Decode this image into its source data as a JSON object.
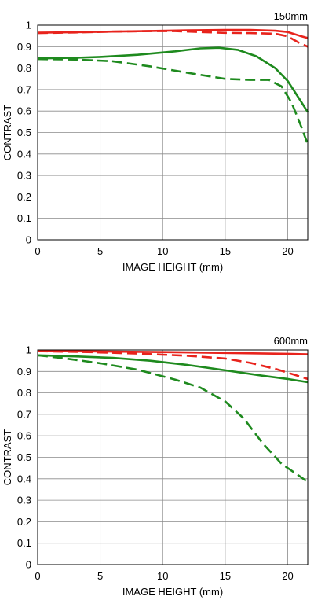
{
  "chart_data": [
    {
      "type": "line",
      "title": "150mm",
      "xlabel": "IMAGE HEIGHT (mm)",
      "ylabel": "CONTRAST",
      "xlim": [
        0,
        21.6
      ],
      "ylim": [
        0,
        1
      ],
      "xticks": [
        0,
        5,
        10,
        15,
        20
      ],
      "yticks": [
        0,
        0.1,
        0.2,
        0.3,
        0.4,
        0.5,
        0.6,
        0.7,
        0.8,
        0.9,
        1
      ],
      "xtick_labels": [
        "0",
        "5",
        "10",
        "15",
        "20"
      ],
      "ytick_labels": [
        "0",
        "0.1",
        "0.2",
        "0.3",
        "0.4",
        "0.5",
        "0.6",
        "0.7",
        "0.8",
        "0.9",
        "1"
      ],
      "grid": true,
      "series": [
        {
          "color": "#e8231c",
          "dash": false,
          "x": [
            0,
            3,
            6,
            9,
            12,
            15,
            17,
            19,
            20,
            21,
            21.6
          ],
          "y": [
            0.965,
            0.967,
            0.97,
            0.973,
            0.976,
            0.978,
            0.978,
            0.974,
            0.968,
            0.95,
            0.94
          ]
        },
        {
          "color": "#e8231c",
          "dash": true,
          "x": [
            0,
            3,
            6,
            9,
            11,
            13,
            15,
            17,
            19,
            20,
            21,
            21.6
          ],
          "y": [
            0.963,
            0.966,
            0.97,
            0.972,
            0.972,
            0.968,
            0.964,
            0.963,
            0.96,
            0.948,
            0.915,
            0.9
          ]
        },
        {
          "color": "#1e8a1e",
          "dash": false,
          "x": [
            0,
            3,
            5,
            8,
            11,
            13,
            14.5,
            16,
            17.5,
            19,
            20,
            21,
            21.6
          ],
          "y": [
            0.845,
            0.848,
            0.852,
            0.862,
            0.878,
            0.892,
            0.895,
            0.885,
            0.855,
            0.8,
            0.74,
            0.65,
            0.595
          ]
        },
        {
          "color": "#1e8a1e",
          "dash": true,
          "x": [
            0,
            3,
            6,
            9,
            12,
            15,
            17,
            18.5,
            19.5,
            20.3,
            21,
            21.6
          ],
          "y": [
            0.842,
            0.84,
            0.832,
            0.808,
            0.778,
            0.75,
            0.745,
            0.745,
            0.715,
            0.64,
            0.54,
            0.445
          ]
        }
      ]
    },
    {
      "type": "line",
      "title": "600mm",
      "xlabel": "IMAGE HEIGHT (mm)",
      "ylabel": "CONTRAST",
      "xlim": [
        0,
        21.6
      ],
      "ylim": [
        0,
        1
      ],
      "xticks": [
        0,
        5,
        10,
        15,
        20
      ],
      "yticks": [
        0,
        0.1,
        0.2,
        0.3,
        0.4,
        0.5,
        0.6,
        0.7,
        0.8,
        0.9,
        1
      ],
      "xtick_labels": [
        "0",
        "5",
        "10",
        "15",
        "20"
      ],
      "ytick_labels": [
        "0",
        "0.1",
        "0.2",
        "0.3",
        "0.4",
        "0.5",
        "0.6",
        "0.7",
        "0.8",
        "0.9",
        "1"
      ],
      "grid": true,
      "series": [
        {
          "color": "#e8231c",
          "dash": false,
          "x": [
            0,
            5,
            10,
            15,
            20,
            21.6
          ],
          "y": [
            0.995,
            0.993,
            0.99,
            0.986,
            0.982,
            0.98
          ]
        },
        {
          "color": "#e8231c",
          "dash": true,
          "x": [
            0,
            4,
            8,
            12,
            15,
            17,
            19,
            20.5,
            21.6
          ],
          "y": [
            0.994,
            0.99,
            0.983,
            0.973,
            0.96,
            0.94,
            0.912,
            0.885,
            0.865
          ]
        },
        {
          "color": "#1e8a1e",
          "dash": false,
          "x": [
            0,
            3,
            6,
            9,
            12,
            15,
            18,
            20,
            21.6
          ],
          "y": [
            0.975,
            0.97,
            0.963,
            0.95,
            0.93,
            0.905,
            0.88,
            0.865,
            0.85
          ]
        },
        {
          "color": "#1e8a1e",
          "dash": true,
          "x": [
            0,
            2,
            5,
            8,
            11,
            13,
            15,
            16.5,
            18,
            19.5,
            21,
            21.6
          ],
          "y": [
            0.975,
            0.962,
            0.938,
            0.908,
            0.862,
            0.825,
            0.76,
            0.68,
            0.565,
            0.47,
            0.41,
            0.385
          ]
        }
      ]
    }
  ]
}
